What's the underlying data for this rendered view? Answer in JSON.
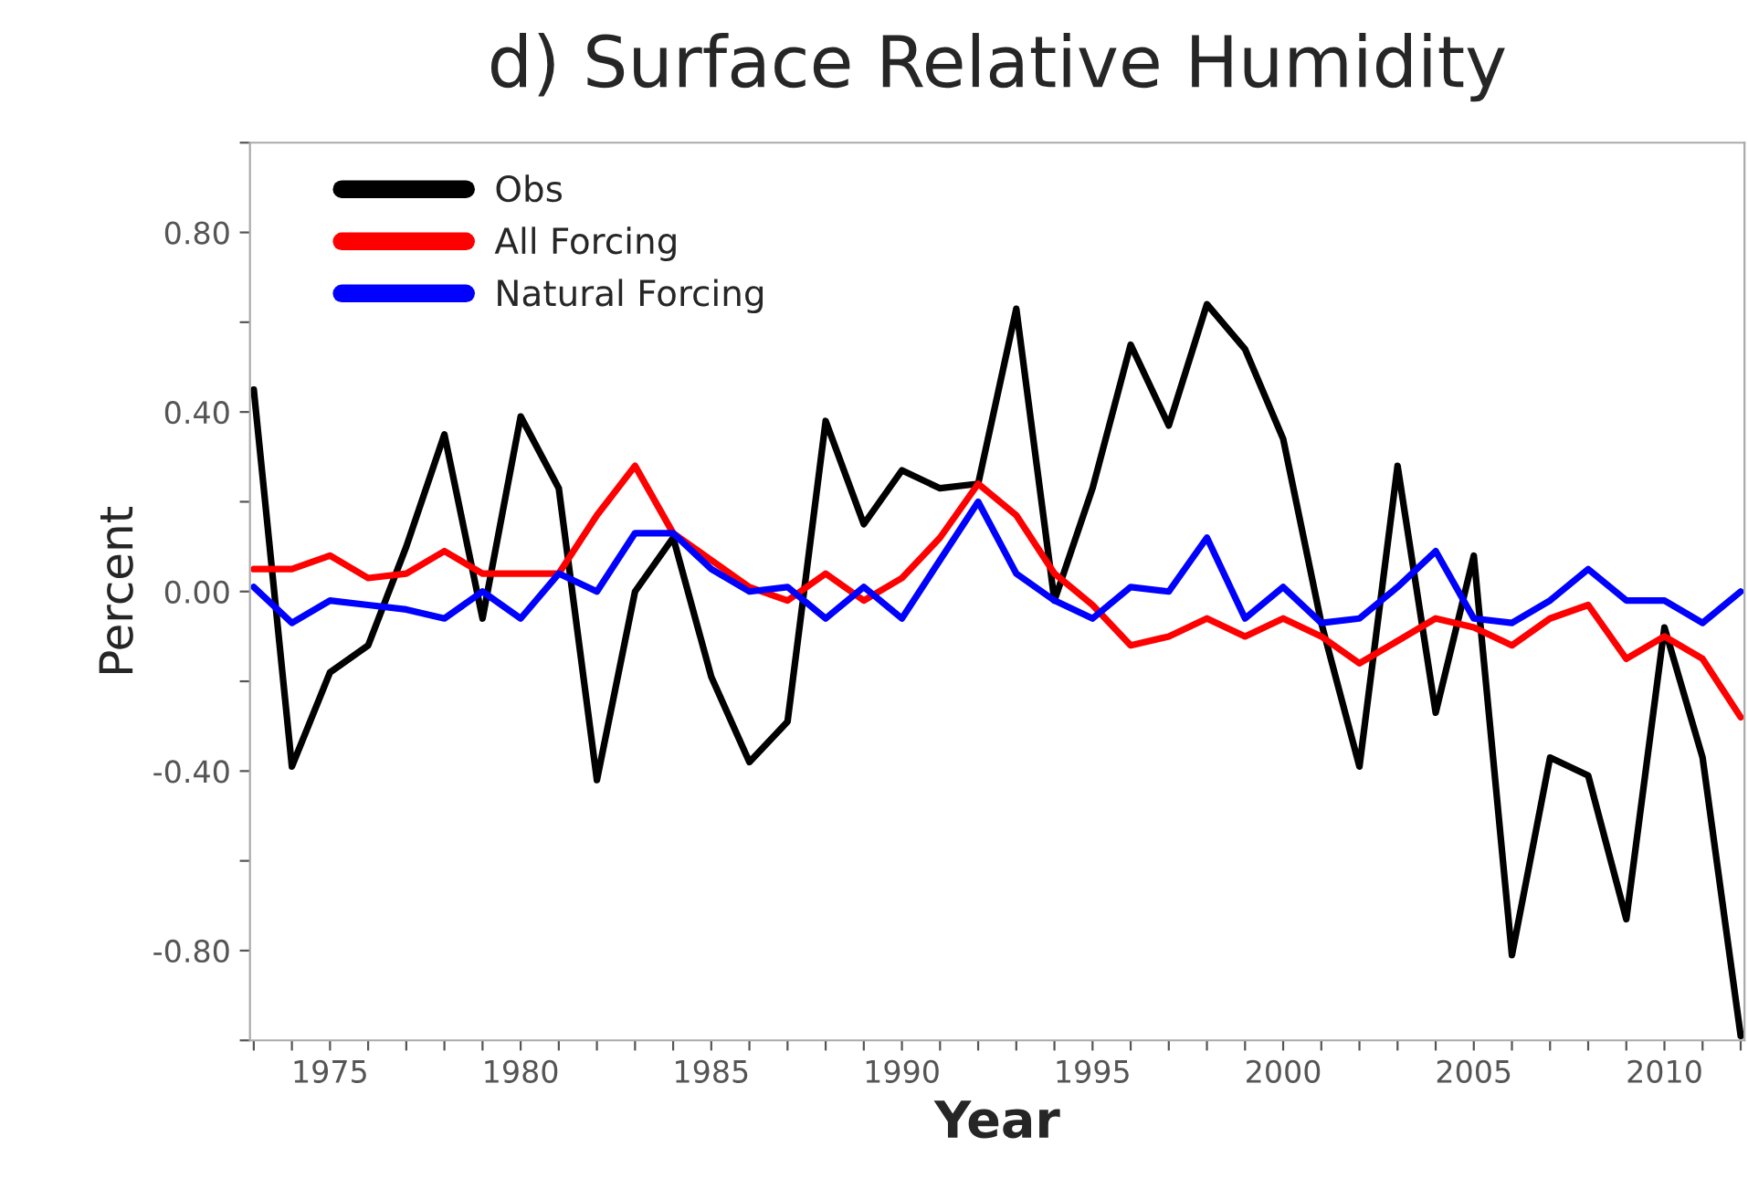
{
  "chart_data": {
    "type": "line",
    "title": "d) Surface Relative Humidity",
    "xlabel": "Year",
    "ylabel": "Percent",
    "x": [
      1973,
      1974,
      1975,
      1976,
      1977,
      1978,
      1979,
      1980,
      1981,
      1982,
      1983,
      1984,
      1985,
      1986,
      1987,
      1988,
      1989,
      1990,
      1991,
      1992,
      1993,
      1994,
      1995,
      1996,
      1997,
      1998,
      1999,
      2000,
      2001,
      2002,
      2003,
      2004,
      2005,
      2006,
      2007,
      2008,
      2009,
      2010,
      2011,
      2012
    ],
    "series": [
      {
        "name": "Obs",
        "color": "#000000",
        "values": [
          0.45,
          -0.39,
          -0.18,
          -0.12,
          0.1,
          0.35,
          -0.06,
          0.39,
          0.23,
          -0.42,
          0.0,
          0.12,
          -0.19,
          -0.38,
          -0.29,
          0.38,
          0.15,
          0.27,
          0.23,
          0.24,
          0.63,
          -0.02,
          0.23,
          0.55,
          0.37,
          0.64,
          0.54,
          0.34,
          -0.07,
          -0.39,
          0.28,
          -0.27,
          0.08,
          -0.81,
          -0.37,
          -0.41,
          -0.73,
          -0.08,
          -0.37,
          -0.99
        ]
      },
      {
        "name": "All Forcing",
        "color": "#ff0000",
        "values": [
          0.05,
          0.05,
          0.08,
          0.03,
          0.04,
          0.09,
          0.04,
          0.04,
          0.04,
          0.17,
          0.28,
          0.13,
          0.07,
          0.01,
          -0.02,
          0.04,
          -0.02,
          0.03,
          0.12,
          0.24,
          0.17,
          0.04,
          -0.03,
          -0.12,
          -0.1,
          -0.06,
          -0.1,
          -0.06,
          -0.1,
          -0.16,
          -0.11,
          -0.06,
          -0.08,
          -0.12,
          -0.06,
          -0.03,
          -0.15,
          -0.1,
          -0.15,
          -0.28
        ]
      },
      {
        "name": "Natural Forcing",
        "color": "#0000ff",
        "values": [
          0.01,
          -0.07,
          -0.02,
          -0.03,
          -0.04,
          -0.06,
          0.0,
          -0.06,
          0.04,
          0.0,
          0.13,
          0.13,
          0.05,
          0.0,
          0.01,
          -0.06,
          0.01,
          -0.06,
          0.07,
          0.2,
          0.04,
          -0.02,
          -0.06,
          0.01,
          0.0,
          0.12,
          -0.06,
          0.01,
          -0.07,
          -0.06,
          0.01,
          0.09,
          -0.06,
          -0.07,
          -0.02,
          0.05,
          -0.02,
          -0.02,
          -0.07,
          0.0
        ]
      }
    ],
    "xlim": [
      1972.9,
      2012.1
    ],
    "xticks": [
      {
        "value": 1973,
        "label": null
      },
      {
        "value": 1974,
        "label": null
      },
      1975,
      {
        "value": 1976,
        "label": null
      },
      {
        "value": 1977,
        "label": null
      },
      {
        "value": 1978,
        "label": null
      },
      {
        "value": 1979,
        "label": null
      },
      1980,
      {
        "value": 1981,
        "label": null
      },
      {
        "value": 1982,
        "label": null
      },
      {
        "value": 1983,
        "label": null
      },
      {
        "value": 1984,
        "label": null
      },
      1985,
      {
        "value": 1986,
        "label": null
      },
      {
        "value": 1987,
        "label": null
      },
      {
        "value": 1988,
        "label": null
      },
      {
        "value": 1989,
        "label": null
      },
      1990,
      {
        "value": 1991,
        "label": null
      },
      {
        "value": 1992,
        "label": null
      },
      {
        "value": 1993,
        "label": null
      },
      {
        "value": 1994,
        "label": null
      },
      1995,
      {
        "value": 1996,
        "label": null
      },
      {
        "value": 1997,
        "label": null
      },
      {
        "value": 1998,
        "label": null
      },
      {
        "value": 1999,
        "label": null
      },
      2000,
      {
        "value": 2001,
        "label": null
      },
      {
        "value": 2002,
        "label": null
      },
      {
        "value": 2003,
        "label": null
      },
      {
        "value": 2004,
        "label": null
      },
      2005,
      {
        "value": 2006,
        "label": null
      },
      {
        "value": 2007,
        "label": null
      },
      {
        "value": 2008,
        "label": null
      },
      {
        "value": 2009,
        "label": null
      },
      2010,
      {
        "value": 2011,
        "label": null
      },
      {
        "value": 2012,
        "label": null
      }
    ],
    "ylim": [
      -1.0,
      1.0
    ],
    "yticks": [
      {
        "value": -1.0,
        "label": null
      },
      {
        "value": -0.8,
        "label": "-0.80"
      },
      {
        "value": -0.6,
        "label": null
      },
      {
        "value": -0.4,
        "label": "-0.40"
      },
      {
        "value": -0.2,
        "label": null
      },
      {
        "value": 0.0,
        "label": "0.00"
      },
      {
        "value": 0.2,
        "label": null
      },
      {
        "value": 0.4,
        "label": "0.40"
      },
      {
        "value": 0.6,
        "label": null
      },
      {
        "value": 0.8,
        "label": "0.80"
      },
      {
        "value": 1.0,
        "label": null
      }
    ],
    "legend": "top left",
    "grid": false,
    "marker": "none",
    "line_style": "solid"
  }
}
